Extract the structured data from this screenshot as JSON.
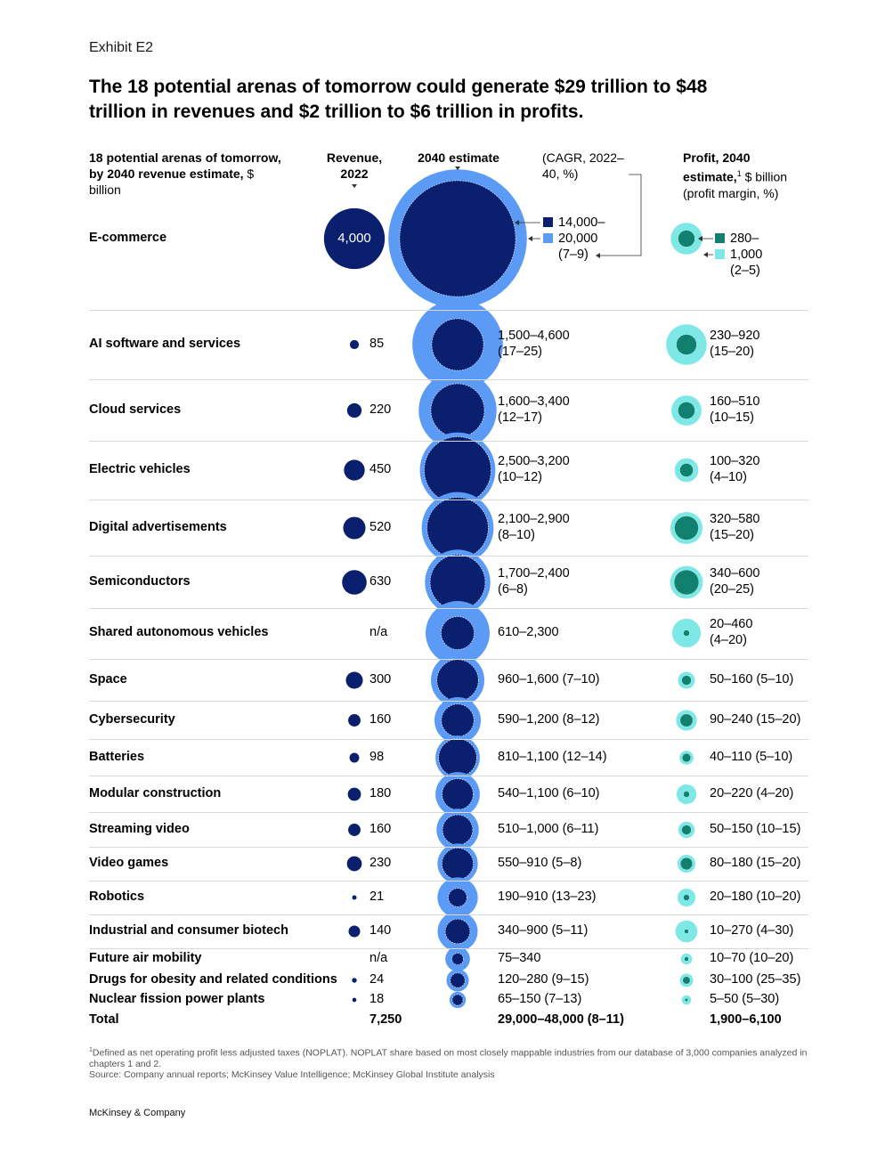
{
  "exhibit": "Exhibit E2",
  "title": "The 18 potential arenas of tomorrow could generate $29 trillion to $48 trillion in revenues and $2 trillion to $6 trillion in profits.",
  "headers": {
    "arena_bold": "18 potential arenas of tomorrow, by 2040 revenue estimate,",
    "arena_unit": " $ billion",
    "revenue": "Revenue, 2022",
    "estimate": "2040 estimate",
    "cagr": "(CAGR, 2022–40, %)",
    "profit_bold": "Profit, 2040 estimate,",
    "profit_sup": "1",
    "profit_unit": " $ billion",
    "profit_margin": "(profit margin, %)"
  },
  "colors": {
    "revenue": "#0a1f6e",
    "estimate_high": "#5b9bf5",
    "estimate_low": "#0a1f6e",
    "profit_high": "#7ee8e6",
    "profit_low": "#12806f"
  },
  "chart_data": {
    "type": "bubble",
    "columns": [
      "Revenue, 2022",
      "2040 estimate",
      "Profit, 2040 estimate"
    ],
    "rows": [
      {
        "name": "E-commerce",
        "revenue": 4000,
        "revenue_label": "4,000",
        "est_low": 14000,
        "est_high": 20000,
        "est_label": "14,000–",
        "est_label2": "20,000",
        "est_cagr": "(7–9)",
        "profit_low": 280,
        "profit_high": 1000,
        "profit_label": "280–",
        "profit_label2": "1,000",
        "profit_margin": "(2–5)"
      },
      {
        "name": "AI software and services",
        "revenue": 85,
        "revenue_label": "85",
        "est_low": 1500,
        "est_high": 4600,
        "est_label": "1,500–4,600",
        "est_cagr": "(17–25)",
        "profit_low": 230,
        "profit_high": 920,
        "profit_label": "230–920",
        "profit_margin": "(15–20)"
      },
      {
        "name": "Cloud services",
        "revenue": 220,
        "revenue_label": "220",
        "est_low": 1600,
        "est_high": 3400,
        "est_label": "1,600–3,400",
        "est_cagr": "(12–17)",
        "profit_low": 160,
        "profit_high": 510,
        "profit_label": "160–510",
        "profit_margin": "(10–15)"
      },
      {
        "name": "Electric vehicles",
        "revenue": 450,
        "revenue_label": "450",
        "est_low": 2500,
        "est_high": 3200,
        "est_label": "2,500–3,200",
        "est_cagr": "(10–12)",
        "profit_low": 100,
        "profit_high": 320,
        "profit_label": "100–320",
        "profit_margin": "(4–10)"
      },
      {
        "name": "Digital advertisements",
        "revenue": 520,
        "revenue_label": "520",
        "est_low": 2100,
        "est_high": 2900,
        "est_label": "2,100–2,900",
        "est_cagr": "(8–10)",
        "profit_low": 320,
        "profit_high": 580,
        "profit_label": "320–580",
        "profit_margin": "(15–20)"
      },
      {
        "name": "Semiconductors",
        "revenue": 630,
        "revenue_label": "630",
        "est_low": 1700,
        "est_high": 2400,
        "est_label": "1,700–2,400",
        "est_cagr": "(6–8)",
        "profit_low": 340,
        "profit_high": 600,
        "profit_label": "340–600",
        "profit_margin": "(20–25)"
      },
      {
        "name": "Shared autonomous vehicles",
        "revenue": null,
        "revenue_label": "n/a",
        "est_low": 610,
        "est_high": 2300,
        "est_label": "610–2,300",
        "est_cagr": "",
        "profit_low": 20,
        "profit_high": 460,
        "profit_label": "20–460",
        "profit_margin": "(4–20)"
      },
      {
        "name": "Space",
        "revenue": 300,
        "revenue_label": "300",
        "est_low": 960,
        "est_high": 1600,
        "est_label": "960–1,600 (7–10)",
        "profit_low": 50,
        "profit_high": 160,
        "profit_label": "50–160 (5–10)"
      },
      {
        "name": "Cybersecurity",
        "revenue": 160,
        "revenue_label": "160",
        "est_low": 590,
        "est_high": 1200,
        "est_label": "590–1,200 (8–12)",
        "profit_low": 90,
        "profit_high": 240,
        "profit_label": "90–240 (15–20)"
      },
      {
        "name": "Batteries",
        "revenue": 98,
        "revenue_label": "98",
        "est_low": 810,
        "est_high": 1100,
        "est_label": "810–1,100 (12–14)",
        "profit_low": 40,
        "profit_high": 110,
        "profit_label": "40–110 (5–10)"
      },
      {
        "name": "Modular construction",
        "revenue": 180,
        "revenue_label": "180",
        "est_low": 540,
        "est_high": 1100,
        "est_label": "540–1,100 (6–10)",
        "profit_low": 20,
        "profit_high": 220,
        "profit_label": "20–220 (4–20)"
      },
      {
        "name": "Streaming video",
        "revenue": 160,
        "revenue_label": "160",
        "est_low": 510,
        "est_high": 1000,
        "est_label": "510–1,000 (6–11)",
        "profit_low": 50,
        "profit_high": 150,
        "profit_label": "50–150 (10–15)"
      },
      {
        "name": "Video games",
        "revenue": 230,
        "revenue_label": "230",
        "est_low": 550,
        "est_high": 910,
        "est_label": "550–910 (5–8)",
        "profit_low": 80,
        "profit_high": 180,
        "profit_label": "80–180 (15–20)"
      },
      {
        "name": "Robotics",
        "revenue": 21,
        "revenue_label": "21",
        "est_low": 190,
        "est_high": 910,
        "est_label": "190–910 (13–23)",
        "profit_low": 20,
        "profit_high": 180,
        "profit_label": "20–180 (10–20)"
      },
      {
        "name": "Industrial and consumer biotech",
        "revenue": 140,
        "revenue_label": "140",
        "est_low": 340,
        "est_high": 900,
        "est_label": "340–900 (5–11)",
        "profit_low": 10,
        "profit_high": 270,
        "profit_label": "10–270 (4–30)"
      },
      {
        "name": "Future air mobility",
        "revenue": null,
        "revenue_label": "n/a",
        "est_low": 75,
        "est_high": 340,
        "est_label": "75–340",
        "profit_low": 10,
        "profit_high": 70,
        "profit_label": "10–70 (10–20)"
      },
      {
        "name": "Drugs for obesity and related conditions",
        "revenue": 24,
        "revenue_label": "24",
        "est_low": 120,
        "est_high": 280,
        "est_label": "120–280 (9–15)",
        "profit_low": 30,
        "profit_high": 100,
        "profit_label": "30–100 (25–35)"
      },
      {
        "name": "Nuclear fission power plants",
        "revenue": 18,
        "revenue_label": "18",
        "est_low": 65,
        "est_high": 150,
        "est_label": "65–150 (7–13)",
        "profit_low": 5,
        "profit_high": 50,
        "profit_label": "5–50 (5–30)"
      }
    ],
    "total": {
      "label": "Total",
      "revenue": "7,250",
      "estimate": "29,000–48,000 (8–11)",
      "profit": "1,900–6,100"
    }
  },
  "footnote_sup": "1",
  "footnote": "Defined as net operating profit less adjusted taxes (NOPLAT). NOPLAT share based on most closely mappable industries from our database of 3,000 companies analyzed in chapters 1 and 2.",
  "source": "Source: Company annual reports; McKinsey Value Intelligence; McKinsey Global Institute analysis",
  "brand": "McKinsey & Company"
}
